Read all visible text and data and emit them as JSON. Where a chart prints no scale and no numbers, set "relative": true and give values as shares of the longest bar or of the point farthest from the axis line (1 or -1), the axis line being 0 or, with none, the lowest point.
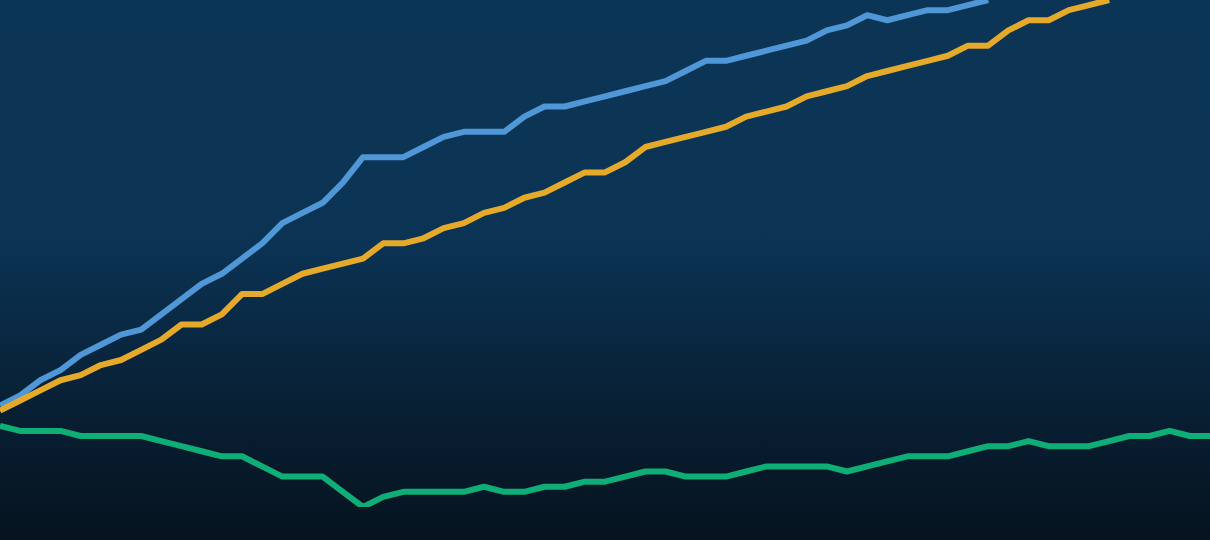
{
  "chart_data": {
    "type": "line",
    "relative": true,
    "categories": [
      null,
      null,
      null,
      null,
      null,
      null,
      null,
      null,
      null,
      null,
      null,
      null,
      null,
      null,
      null,
      null,
      null,
      null,
      null,
      null,
      null,
      null,
      null,
      null,
      null,
      null,
      null,
      null,
      null,
      null,
      null,
      null,
      null,
      null,
      null,
      null,
      null,
      null,
      null,
      null,
      null,
      null,
      null,
      null,
      null,
      null,
      null,
      null,
      null,
      null,
      null,
      null,
      null,
      null,
      null,
      null,
      null,
      null,
      null,
      null,
      null
    ],
    "series": [
      {
        "color": "#4f97d6",
        "values": [
          0.2,
          0.22,
          0.25,
          0.27,
          0.3,
          0.32,
          0.34,
          0.35,
          0.38,
          0.41,
          0.44,
          0.46,
          0.49,
          0.52,
          0.56,
          0.58,
          0.6,
          0.64,
          0.69,
          0.69,
          0.69,
          0.71,
          0.73,
          0.74,
          0.74,
          0.74,
          0.77,
          0.79,
          0.79,
          0.8,
          0.81,
          0.82,
          0.83,
          0.84,
          0.86,
          0.88,
          0.88,
          0.89,
          0.9,
          0.91,
          0.92,
          0.94,
          0.95,
          0.97,
          0.96,
          0.97,
          0.98,
          0.98,
          0.99,
          1.0,
          null,
          null,
          null,
          null,
          null,
          null,
          null,
          null,
          null,
          null,
          null
        ]
      },
      {
        "color": "#e6aa2a",
        "values": [
          0.19,
          0.21,
          0.23,
          0.25,
          0.26,
          0.28,
          0.29,
          0.31,
          0.33,
          0.36,
          0.36,
          0.38,
          0.42,
          0.42,
          0.44,
          0.46,
          0.47,
          0.48,
          0.49,
          0.52,
          0.52,
          0.53,
          0.55,
          0.56,
          0.58,
          0.59,
          0.61,
          0.62,
          0.64,
          0.66,
          0.66,
          0.68,
          0.71,
          0.72,
          0.73,
          0.74,
          0.75,
          0.77,
          0.78,
          0.79,
          0.81,
          0.82,
          0.83,
          0.85,
          0.86,
          0.87,
          0.88,
          0.89,
          0.91,
          0.91,
          0.94,
          0.96,
          0.96,
          0.98,
          0.99,
          1.0,
          null,
          null,
          null,
          null,
          null
        ]
      },
      {
        "color": "#0fae77",
        "values": [
          0.16,
          0.15,
          0.15,
          0.15,
          0.14,
          0.14,
          0.14,
          0.14,
          0.13,
          0.12,
          0.11,
          0.1,
          0.1,
          0.08,
          0.06,
          0.06,
          0.06,
          0.03,
          0.0,
          0.02,
          0.03,
          0.03,
          0.03,
          0.03,
          0.04,
          0.03,
          0.03,
          0.04,
          0.04,
          0.05,
          0.05,
          0.06,
          0.07,
          0.07,
          0.06,
          0.06,
          0.06,
          0.07,
          0.08,
          0.08,
          0.08,
          0.08,
          0.07,
          0.08,
          0.09,
          0.1,
          0.1,
          0.1,
          0.11,
          0.12,
          0.12,
          0.13,
          0.12,
          0.12,
          0.12,
          0.13,
          0.14,
          0.14,
          0.15,
          0.14,
          0.14
        ]
      }
    ]
  }
}
